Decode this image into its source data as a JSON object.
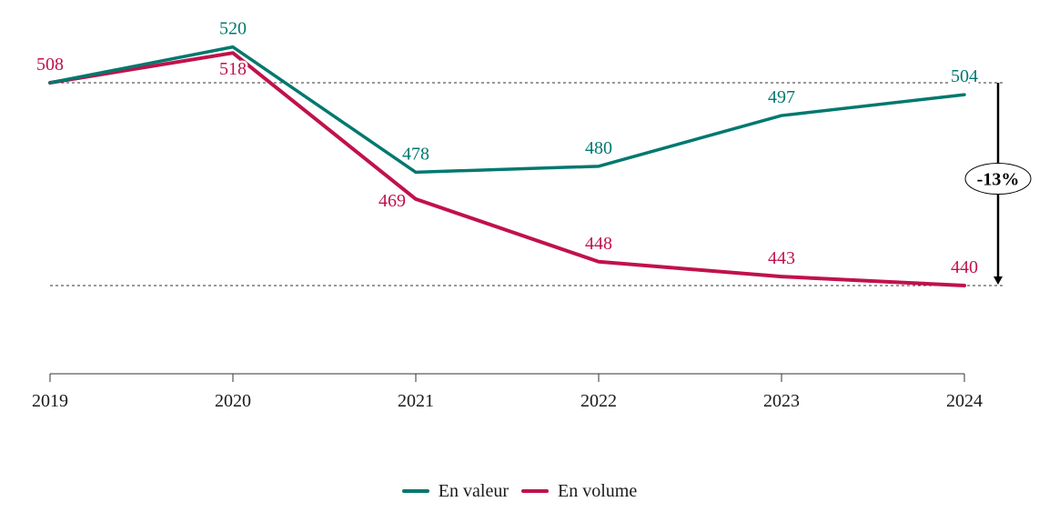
{
  "chart_data": {
    "type": "line",
    "x": [
      "2019",
      "2020",
      "2021",
      "2022",
      "2023",
      "2024"
    ],
    "series": [
      {
        "name": "En valeur",
        "color": "#00786f",
        "values": [
          508,
          520,
          478,
          480,
          497,
          504
        ]
      },
      {
        "name": "En volume",
        "color": "#c0124a",
        "values": [
          508,
          518,
          469,
          448,
          443,
          440
        ]
      }
    ],
    "data_labels": {
      "En valeur": [
        "",
        "520",
        "478",
        "480",
        "497",
        "504"
      ],
      "En volume": [
        "508",
        "518",
        "469",
        "448",
        "443",
        "440"
      ]
    },
    "ylim": [
      410,
      530
    ],
    "grid": false,
    "legend_position": "bottom-center",
    "reference_lines": [
      508,
      440
    ],
    "annotation": {
      "label": "-13%",
      "from": 508,
      "to": 440
    }
  }
}
